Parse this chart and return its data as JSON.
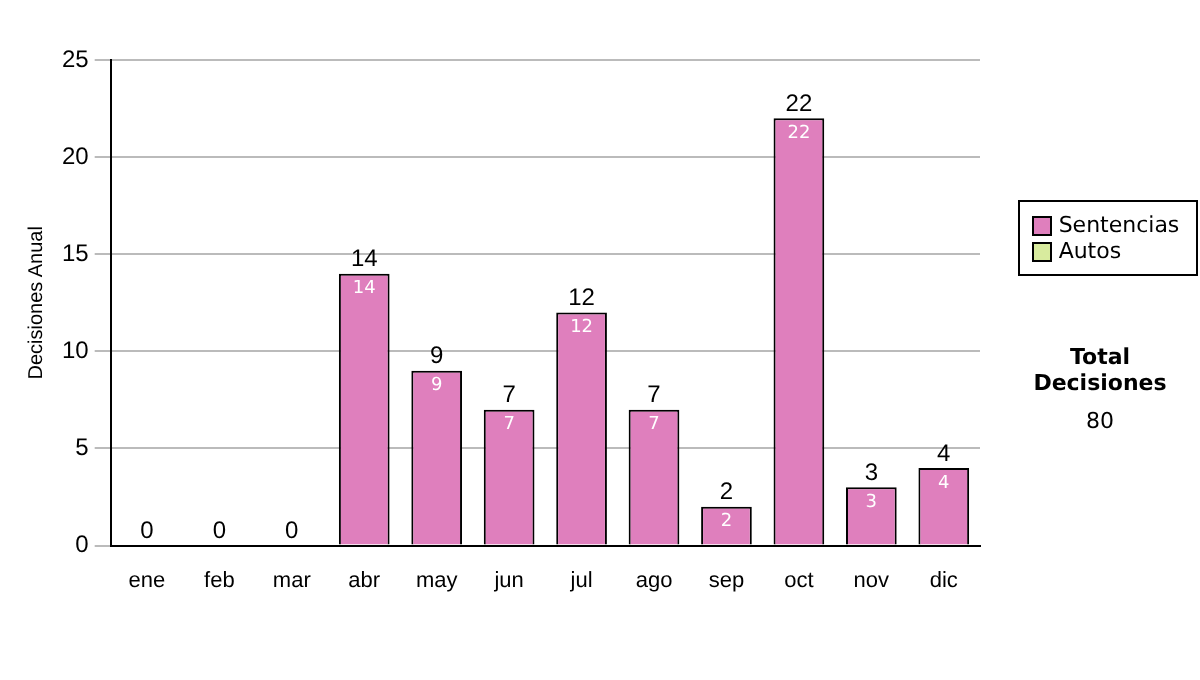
{
  "chart_data": {
    "type": "bar",
    "ylabel": "Decisiones Anual",
    "categories": [
      "ene",
      "feb",
      "mar",
      "abr",
      "may",
      "jun",
      "jul",
      "ago",
      "sep",
      "oct",
      "nov",
      "dic"
    ],
    "stacked": true,
    "series": [
      {
        "name": "Sentencias",
        "color": "#df7fbd",
        "values": [
          0,
          0,
          0,
          14,
          9,
          7,
          12,
          7,
          2,
          22,
          3,
          4
        ],
        "value_labels": [
          null,
          null,
          null,
          "14",
          "9",
          "7",
          "12",
          "7",
          "2",
          "22",
          "3",
          "4"
        ]
      },
      {
        "name": "Autos",
        "color": "#d8eb9e",
        "values": [
          0,
          0,
          0,
          0,
          0,
          0,
          0,
          0,
          0,
          0,
          0,
          0
        ]
      }
    ],
    "totals": [
      "0",
      "0",
      "0",
      "14",
      "9",
      "7",
      "12",
      "7",
      "2",
      "22",
      "3",
      "4"
    ],
    "ylim": [
      0,
      25
    ],
    "yticks": [
      0,
      5,
      10,
      15,
      20,
      25
    ],
    "grid": "y",
    "legend": "right",
    "annotations": [
      "Total Decisiones",
      "80"
    ]
  }
}
